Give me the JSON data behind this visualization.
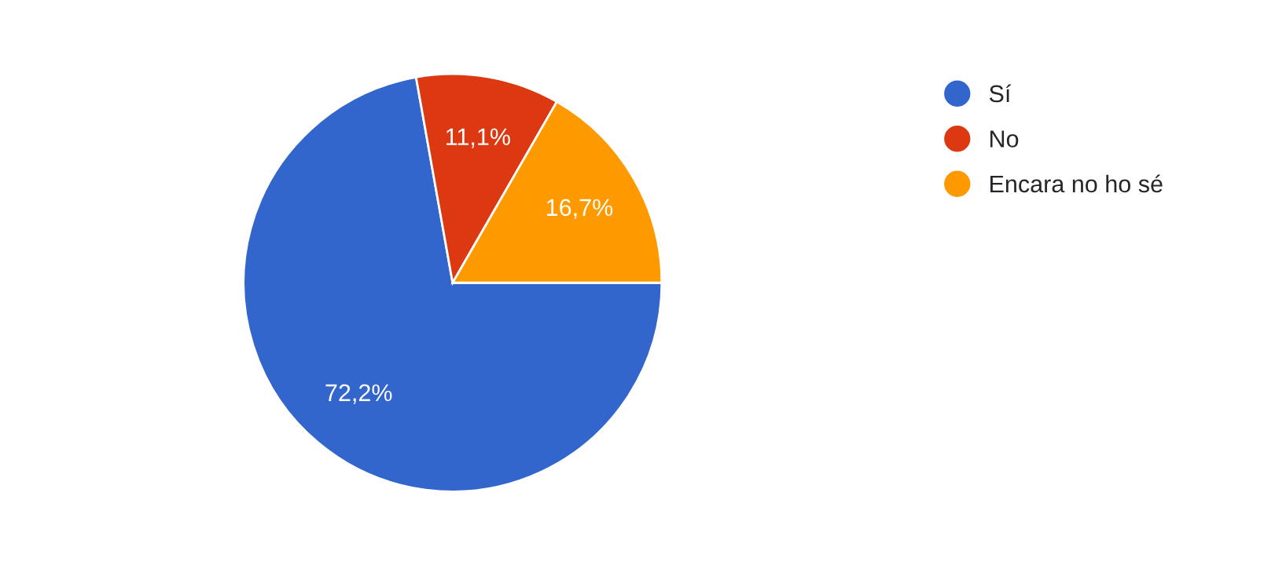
{
  "chart_data": {
    "type": "pie",
    "categories": [
      "Sí",
      "No",
      "Encara no ho sé"
    ],
    "values": [
      72.2,
      11.1,
      16.7
    ],
    "colors": [
      "#3366cc",
      "#dc3912",
      "#ff9900"
    ],
    "value_labels": [
      "72,2%",
      "11,1%",
      "16,7%"
    ],
    "legend": "right"
  }
}
